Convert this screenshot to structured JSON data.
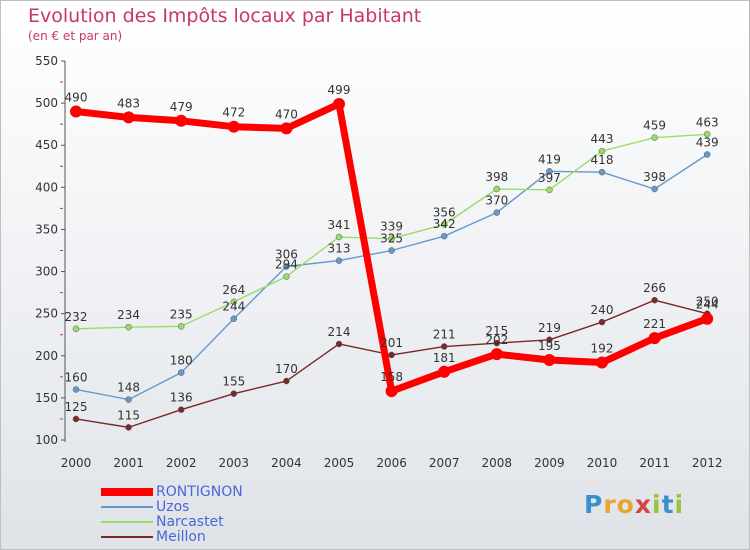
{
  "header": {
    "title": "Evolution des Impôts locaux par Habitant",
    "subtitle": "(en € et par an)"
  },
  "logo": {
    "letters": [
      {
        "char": "P",
        "color": "#3a8fd1"
      },
      {
        "char": "r",
        "color": "#e8a52e"
      },
      {
        "char": "o",
        "color": "#e8a52e"
      },
      {
        "char": "x",
        "color": "#d64545"
      },
      {
        "char": "i",
        "color": "#9ac43e"
      },
      {
        "char": "t",
        "color": "#3a8fd1"
      },
      {
        "char": "i",
        "color": "#9ac43e"
      }
    ]
  },
  "chart_data": {
    "type": "line",
    "title": "Evolution des Impôts locaux par Habitant",
    "subtitle": "(en € et par an)",
    "xlabel": "",
    "ylabel": "",
    "x": [
      "2000",
      "2001",
      "2002",
      "2003",
      "2004",
      "2005",
      "2006",
      "2007",
      "2008",
      "2009",
      "2010",
      "2011",
      "2012"
    ],
    "y_ticks": [
      "100",
      "150",
      "200",
      "250",
      "300",
      "350",
      "400",
      "450",
      "500",
      "550"
    ],
    "ylim": [
      100,
      550
    ],
    "grid": false,
    "legend_position": "bottom-left",
    "series": [
      {
        "name": "RONTIGNON",
        "color": "#ff0000",
        "emphasis": "thick",
        "values": [
          490,
          483,
          479,
          472,
          470,
          499,
          158,
          181,
          202,
          195,
          192,
          221,
          244
        ],
        "labels": [
          "490",
          "483",
          "479",
          "472",
          "470",
          "499",
          "158",
          "181",
          "202",
          "195",
          "192",
          "221",
          "244"
        ]
      },
      {
        "name": "Uzos",
        "color": "#6699cc",
        "emphasis": "thin",
        "values": [
          160,
          148,
          180,
          244,
          306,
          313,
          325,
          342,
          370,
          419,
          418,
          398,
          439
        ],
        "labels": [
          "160",
          "148",
          "180",
          "244",
          "306",
          "313",
          "325",
          "342",
          "370",
          "419",
          "418",
          "398",
          "439"
        ]
      },
      {
        "name": "Narcastet",
        "color": "#99dd66",
        "emphasis": "thin",
        "values": [
          232,
          234,
          235,
          264,
          294,
          341,
          339,
          356,
          398,
          397,
          443,
          459,
          463
        ],
        "labels": [
          "232",
          "234",
          "235",
          "264",
          "294",
          "341",
          "339",
          "356",
          "398",
          "397",
          "443",
          "459",
          "463"
        ]
      },
      {
        "name": "Meillon",
        "color": "#7a2828",
        "emphasis": "thin",
        "values": [
          125,
          115,
          136,
          155,
          170,
          214,
          201,
          211,
          215,
          219,
          240,
          266,
          250
        ],
        "labels": [
          "125",
          "115",
          "136",
          "155",
          "170",
          "214",
          "201",
          "211",
          "215",
          "219",
          "240",
          "266",
          "250"
        ]
      }
    ]
  }
}
